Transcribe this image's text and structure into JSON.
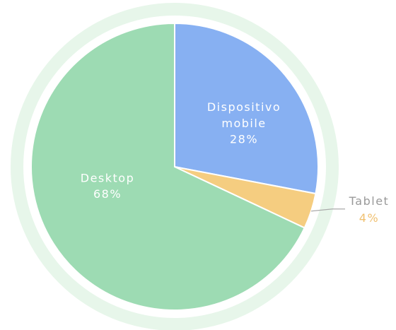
{
  "chart_data": {
    "type": "pie",
    "categories": [
      "Dispositivo mobile",
      "Tablet",
      "Desktop"
    ],
    "values": [
      28,
      4,
      68
    ],
    "value_labels": [
      "28%",
      "4%",
      "68%"
    ],
    "colors": [
      "#87b0f2",
      "#f5cd80",
      "#9ddbb3"
    ]
  }
}
